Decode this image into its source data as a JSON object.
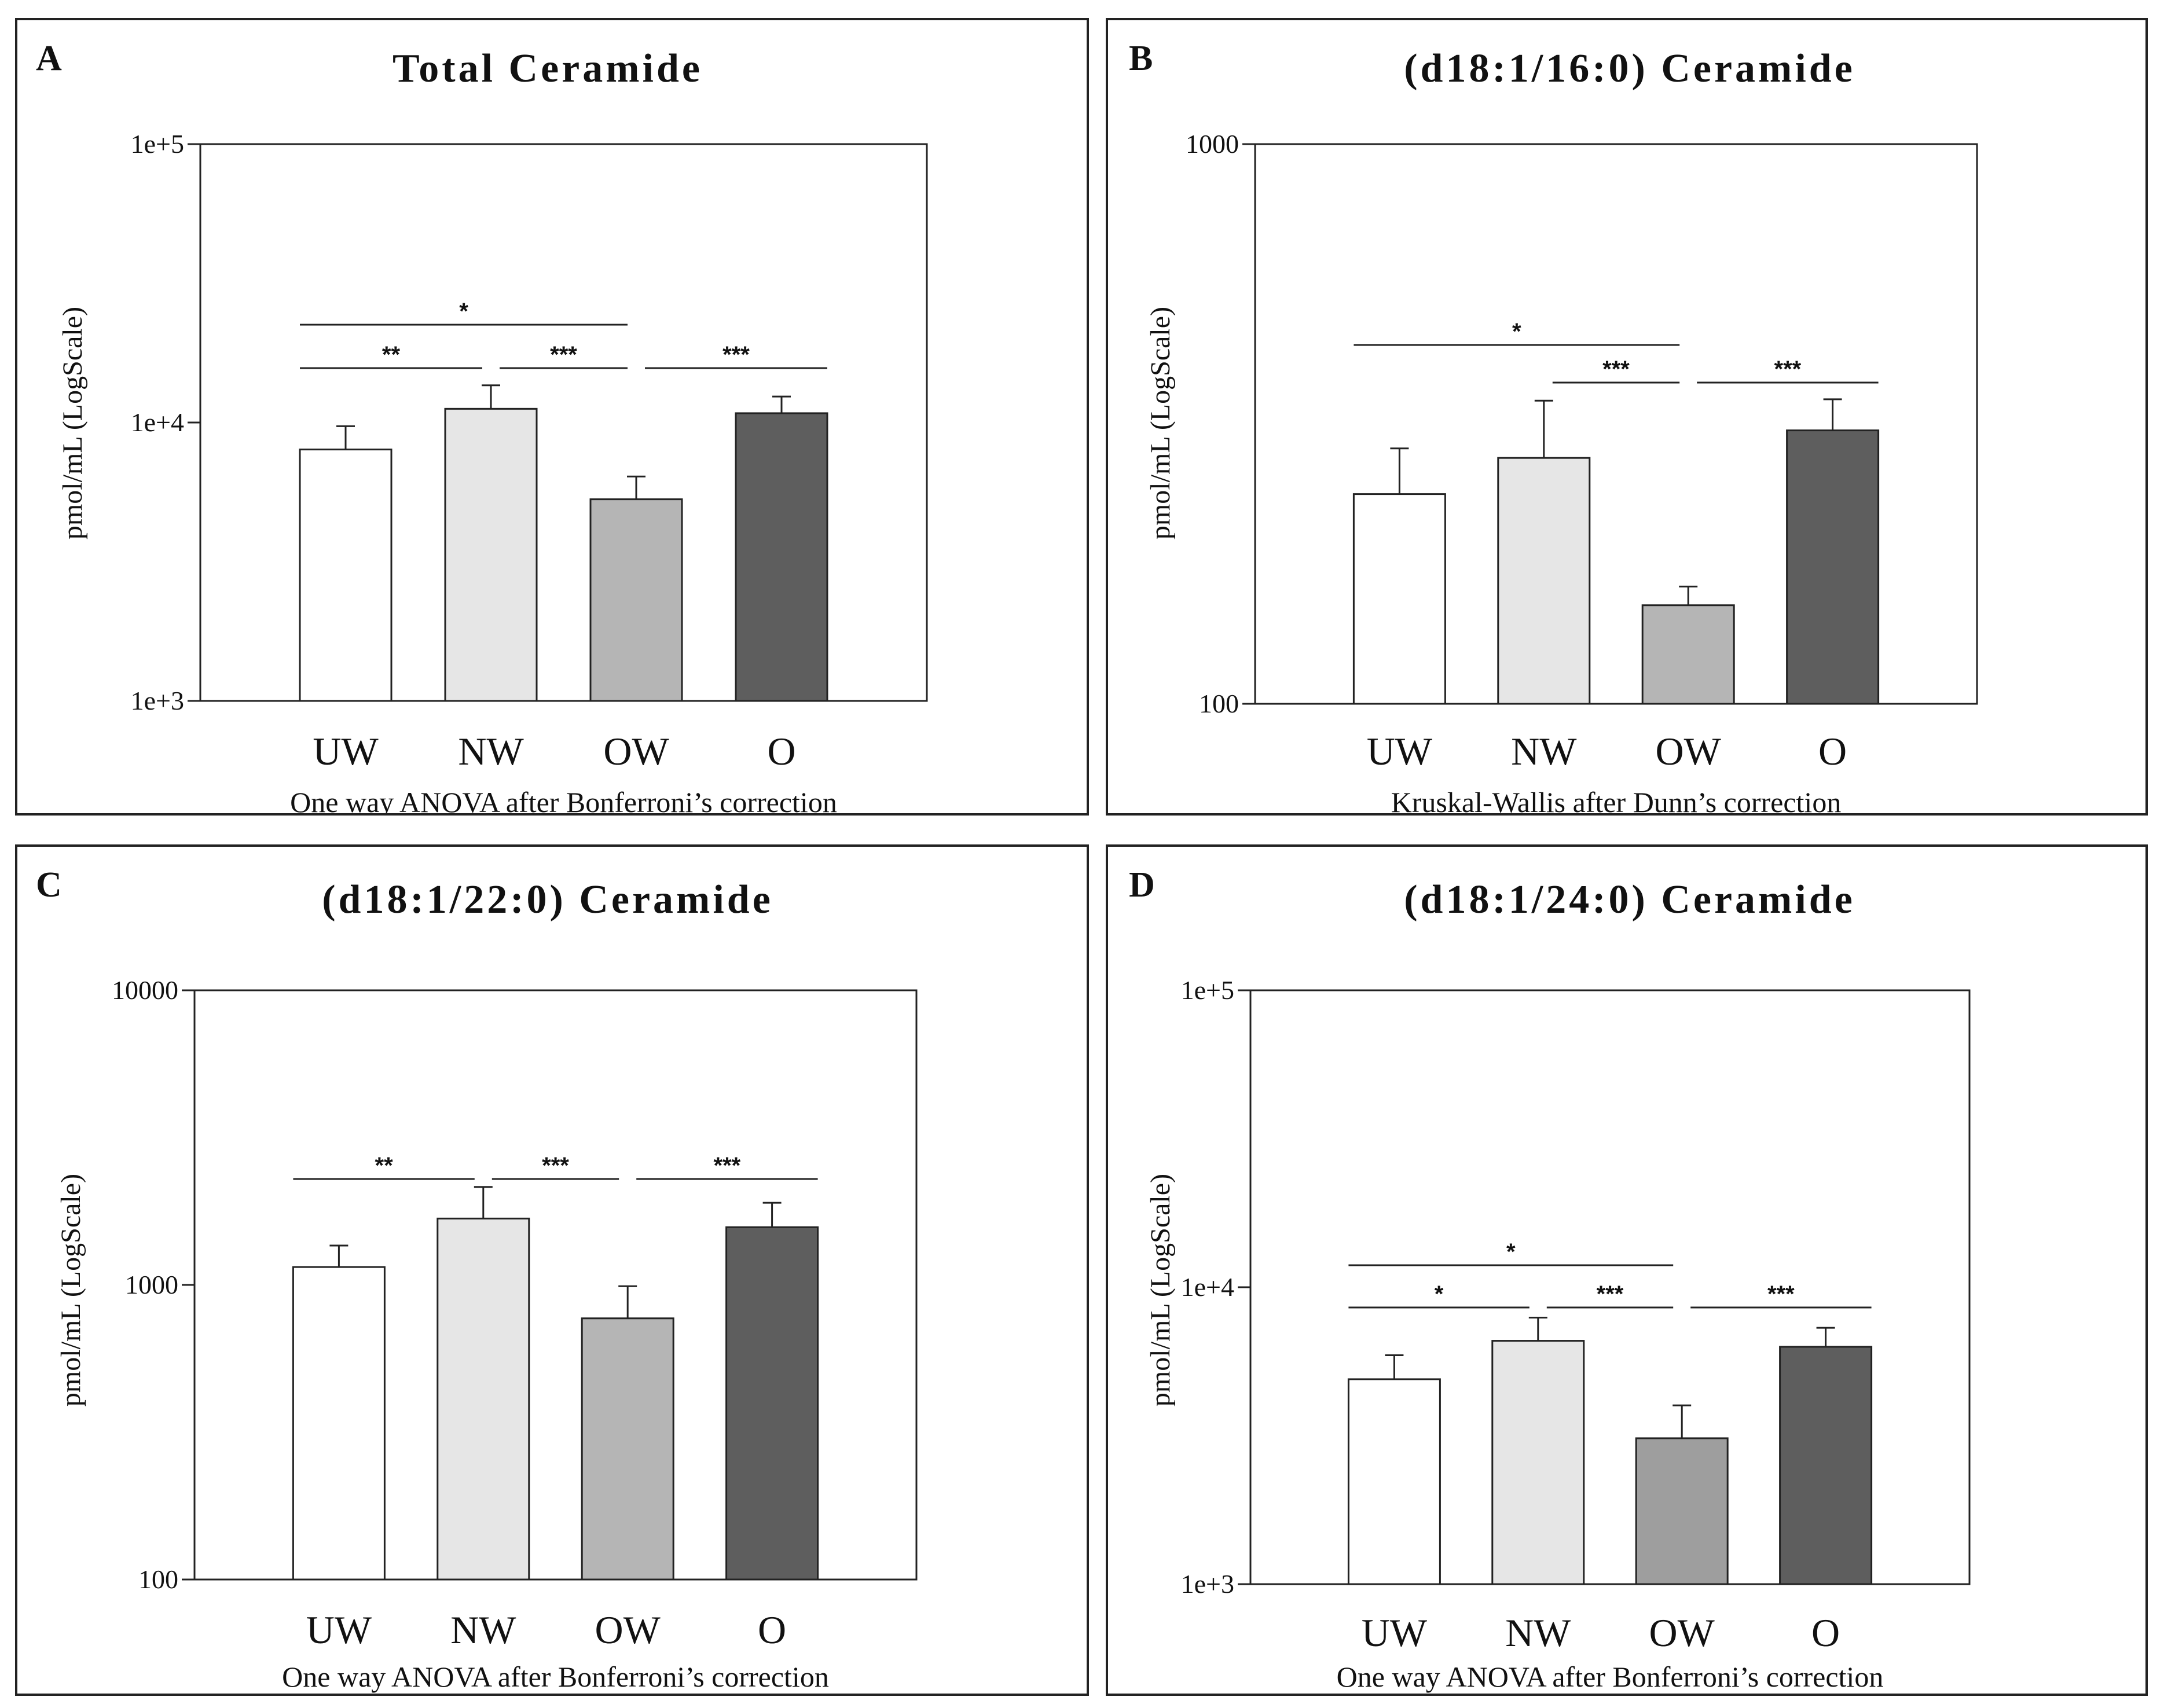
{
  "chart_data": [
    {
      "type": "bar",
      "panel_letter": "A",
      "title": "Total Ceramide",
      "xlabel": "One way ANOVA after Bonferroni’s correction",
      "ylabel": "pmol/mL (LogScale)",
      "yscale": "log",
      "ylim": [
        1000,
        100000
      ],
      "yticks": [
        1000,
        10000,
        100000
      ],
      "ytick_labels": [
        "1e+3",
        "1e+4",
        "1e+5"
      ],
      "categories": [
        "UW",
        "NW",
        "OW",
        "O"
      ],
      "values": [
        8000,
        11200,
        5300,
        10800
      ],
      "error_upper": [
        9700,
        13600,
        6400,
        12400
      ],
      "colors": [
        "#ffffff",
        "#e6e6e6",
        "#b5b5b5",
        "#5e5e5e"
      ],
      "significance": [
        {
          "from": 0,
          "to": 2,
          "label": "*"
        },
        {
          "from": 0,
          "to": 1,
          "label": "**"
        },
        {
          "from": 1,
          "to": 2,
          "label": "***"
        },
        {
          "from": 2,
          "to": 3,
          "label": "***"
        }
      ]
    },
    {
      "type": "bar",
      "panel_letter": "B",
      "title": "(d18:1/16:0) Ceramide",
      "xlabel": "Kruskal-Wallis after Dunn’s correction",
      "ylabel": "pmol/mL (LogScale)",
      "yscale": "log",
      "ylim": [
        100,
        1000
      ],
      "yticks": [
        100,
        1000
      ],
      "ytick_labels": [
        "100",
        "1000"
      ],
      "categories": [
        "UW",
        "NW",
        "OW",
        "O"
      ],
      "values": [
        237,
        275,
        150,
        308
      ],
      "error_upper": [
        286,
        348,
        162,
        350
      ],
      "colors": [
        "#ffffff",
        "#e6e6e6",
        "#b5b5b5",
        "#5e5e5e"
      ],
      "significance": [
        {
          "from": 0,
          "to": 2,
          "label": "*"
        },
        {
          "from": 1,
          "to": 2,
          "label": "***"
        },
        {
          "from": 2,
          "to": 3,
          "label": "***"
        }
      ]
    },
    {
      "type": "bar",
      "panel_letter": "C",
      "title": "(d18:1/22:0) Ceramide",
      "xlabel": "One way ANOVA after Bonferroni’s correction",
      "ylabel": "pmol/mL (LogScale)",
      "yscale": "log",
      "ylim": [
        100,
        10000
      ],
      "yticks": [
        100,
        1000,
        10000
      ],
      "ytick_labels": [
        "100",
        "1000",
        "10000"
      ],
      "categories": [
        "UW",
        "NW",
        "OW",
        "O"
      ],
      "values": [
        1150,
        1680,
        770,
        1570
      ],
      "error_upper": [
        1360,
        2150,
        990,
        1900
      ],
      "colors": [
        "#ffffff",
        "#e6e6e6",
        "#b5b5b5",
        "#5e5e5e"
      ],
      "significance": [
        {
          "from": 0,
          "to": 1,
          "label": "**"
        },
        {
          "from": 1,
          "to": 2,
          "label": "***"
        },
        {
          "from": 2,
          "to": 3,
          "label": "***"
        }
      ]
    },
    {
      "type": "bar",
      "panel_letter": "D",
      "title": "(d18:1/24:0) Ceramide",
      "xlabel": "One way ANOVA after Bonferroni’s correction",
      "ylabel": "pmol/mL (LogScale)",
      "yscale": "log",
      "ylim": [
        1000,
        100000
      ],
      "yticks": [
        1000,
        10000,
        100000
      ],
      "ytick_labels": [
        "1e+3",
        "1e+4",
        "1e+5"
      ],
      "categories": [
        "UW",
        "NW",
        "OW",
        "O"
      ],
      "values": [
        4900,
        6600,
        3100,
        6300
      ],
      "error_upper": [
        5900,
        7900,
        4000,
        7300
      ],
      "colors": [
        "#ffffff",
        "#e6e6e6",
        "#9e9e9e",
        "#5e5e5e"
      ],
      "significance": [
        {
          "from": 0,
          "to": 2,
          "label": "*"
        },
        {
          "from": 0,
          "to": 1,
          "label": "*"
        },
        {
          "from": 1,
          "to": 2,
          "label": "***"
        },
        {
          "from": 2,
          "to": 3,
          "label": "***"
        }
      ]
    }
  ]
}
